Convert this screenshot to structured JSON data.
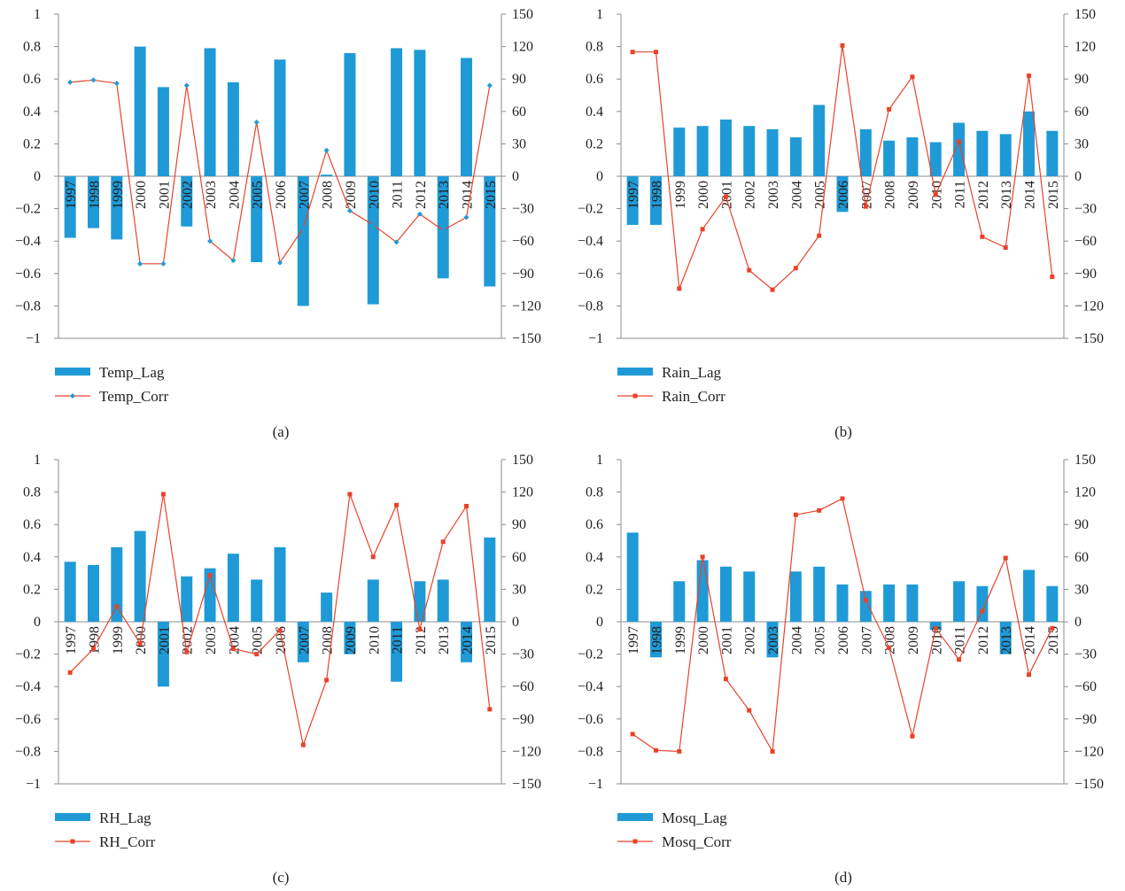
{
  "colors": {
    "bar": "#1f9ad6",
    "line": "#e8432a",
    "axis": "#8c8c8c",
    "text": "#231f20"
  },
  "chart_data": [
    {
      "type": "bar",
      "panel_label": "(a)",
      "categories": [
        "1997",
        "1998",
        "1999",
        "2000",
        "2001",
        "2002",
        "2003",
        "2004",
        "2005",
        "2006",
        "2007",
        "2008",
        "2009",
        "2010",
        "2011",
        "2012",
        "2013",
        "2014",
        "2015"
      ],
      "y_left_ticks": [
        "1",
        "0.8",
        "0.6",
        "0.4",
        "0.2",
        "0",
        "−0.2",
        "−0.4",
        "−0.6",
        "−0.8",
        "−1"
      ],
      "y_right_ticks": [
        "150",
        "120",
        "90",
        "60",
        "30",
        "0",
        "−30",
        "−60",
        "−90",
        "−120",
        "−150"
      ],
      "ylim_left": [
        -1,
        1
      ],
      "ylim_right": [
        -150,
        150
      ],
      "marker": "diamond",
      "series": [
        {
          "name": "Temp_Lag",
          "type": "bar",
          "axis": "left",
          "values": [
            -0.38,
            -0.32,
            -0.39,
            0.8,
            0.55,
            -0.31,
            0.79,
            0.58,
            -0.53,
            0.72,
            -0.8,
            0.01,
            0.76,
            -0.79,
            0.79,
            0.78,
            -0.63,
            0.73,
            -0.68
          ]
        },
        {
          "name": "Temp_Corr",
          "type": "line",
          "axis": "right",
          "values": [
            87,
            89,
            86,
            -81,
            -81,
            84,
            -60,
            -78,
            50,
            -80,
            -48,
            24,
            -32,
            -45,
            -61,
            -35,
            -50,
            -38,
            84
          ]
        }
      ]
    },
    {
      "type": "bar",
      "panel_label": "(b)",
      "categories": [
        "1997",
        "1998",
        "1999",
        "2000",
        "2001",
        "2002",
        "2003",
        "2004",
        "2005",
        "2006",
        "2007",
        "2008",
        "2009",
        "2010",
        "2011",
        "2012",
        "2013",
        "2014",
        "2015"
      ],
      "y_left_ticks": [
        "1",
        "0.8",
        "0.6",
        "0.4",
        "0.2",
        "0",
        "−0.2",
        "−0.4",
        "−0.6",
        "−0.8",
        "−1"
      ],
      "y_right_ticks": [
        "150",
        "120",
        "90",
        "60",
        "30",
        "0",
        "−30",
        "−60",
        "−90",
        "−120",
        "−150"
      ],
      "ylim_left": [
        -1,
        1
      ],
      "ylim_right": [
        -150,
        150
      ],
      "marker": "square",
      "series": [
        {
          "name": "Rain_Lag",
          "type": "bar",
          "axis": "left",
          "values": [
            -0.3,
            -0.3,
            0.3,
            0.31,
            0.35,
            0.31,
            0.29,
            0.24,
            0.44,
            -0.22,
            0.29,
            0.22,
            0.24,
            0.21,
            0.33,
            0.28,
            0.26,
            0.4,
            0.28
          ]
        },
        {
          "name": "Rain_Corr",
          "type": "line",
          "axis": "right",
          "values": [
            115,
            115,
            -104,
            -49,
            -19,
            -87,
            -105,
            -85,
            -55,
            121,
            -28,
            62,
            92,
            -17,
            32,
            -56,
            -66,
            93,
            -93
          ]
        }
      ]
    },
    {
      "type": "bar",
      "panel_label": "(c)",
      "categories": [
        "1997",
        "1998",
        "1999",
        "2000",
        "2001",
        "2002",
        "2003",
        "2004",
        "2005",
        "2006",
        "2007",
        "2008",
        "2009",
        "2010",
        "2011",
        "2012",
        "2013",
        "2014",
        "2015"
      ],
      "y_left_ticks": [
        "1",
        "0.8",
        "0.6",
        "0.4",
        "0.2",
        "0",
        "−0.2",
        "−0.4",
        "−0.6",
        "−0.8",
        "−1"
      ],
      "y_right_ticks": [
        "150",
        "120",
        "90",
        "60",
        "30",
        "0",
        "−30",
        "−60",
        "−90",
        "−120",
        "−150"
      ],
      "ylim_left": [
        -1,
        1
      ],
      "ylim_right": [
        -150,
        150
      ],
      "marker": "square",
      "series": [
        {
          "name": "RH_Lag",
          "type": "bar",
          "axis": "left",
          "values": [
            0.37,
            0.35,
            0.46,
            0.56,
            -0.4,
            0.28,
            0.33,
            0.42,
            0.26,
            0.46,
            -0.25,
            0.18,
            -0.2,
            0.26,
            -0.37,
            0.25,
            0.26,
            -0.25,
            0.52
          ]
        },
        {
          "name": "RH_Corr",
          "type": "line",
          "axis": "right",
          "values": [
            -47,
            -25,
            14,
            -20,
            118,
            -28,
            43,
            -25,
            -30,
            -8,
            -114,
            -54,
            118,
            60,
            108,
            -7,
            74,
            107,
            -81
          ]
        }
      ]
    },
    {
      "type": "bar",
      "panel_label": "(d)",
      "categories": [
        "1997",
        "1998",
        "1999",
        "2000",
        "2001",
        "2002",
        "2003",
        "2004",
        "2005",
        "2006",
        "2007",
        "2008",
        "2009",
        "2010",
        "2011",
        "2012",
        "2013",
        "2014",
        "2015"
      ],
      "y_left_ticks": [
        "1",
        "0.8",
        "0.6",
        "0.4",
        "0.2",
        "0",
        "−0.2",
        "−0.4",
        "−0.6",
        "−0.8",
        "−1"
      ],
      "y_right_ticks": [
        "150",
        "120",
        "90",
        "60",
        "30",
        "0",
        "−30",
        "−60",
        "−90",
        "−120",
        "−150"
      ],
      "ylim_left": [
        -1,
        1
      ],
      "ylim_right": [
        -150,
        150
      ],
      "marker": "square",
      "series": [
        {
          "name": "Mosq_Lag",
          "type": "bar",
          "axis": "left",
          "values": [
            0.55,
            -0.22,
            0.25,
            0.38,
            0.34,
            0.31,
            -0.22,
            0.31,
            0.34,
            0.23,
            0.19,
            0.23,
            0.23,
            -0.05,
            0.25,
            0.22,
            -0.2,
            0.32,
            0.22
          ]
        },
        {
          "name": "Mosq_Corr",
          "type": "line",
          "axis": "right",
          "values": [
            -104,
            -119,
            -120,
            60,
            -53,
            -82,
            -120,
            99,
            103,
            114,
            20,
            -24,
            -106,
            -6,
            -35,
            10,
            59,
            -49,
            -6
          ]
        }
      ]
    }
  ]
}
